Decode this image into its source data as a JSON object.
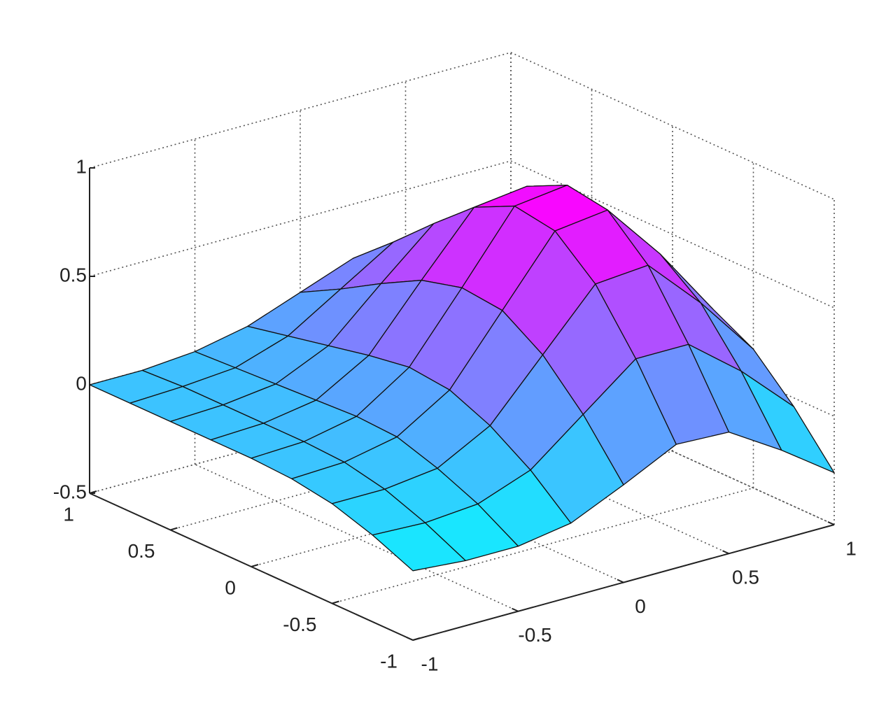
{
  "chart_data": {
    "type": "surface",
    "x": [
      -1,
      -0.75,
      -0.5,
      -0.25,
      0,
      0.25,
      0.5,
      0.75,
      1
    ],
    "y": [
      -1,
      -0.75,
      -0.5,
      -0.25,
      0,
      0.25,
      0.5,
      0.75,
      1
    ],
    "z": [
      [
        -0.18,
        -0.2,
        -0.2,
        -0.16,
        -0.05,
        0.07,
        0.06,
        -0.09,
        -0.26
      ],
      [
        -0.1,
        -0.11,
        -0.09,
        0.0,
        0.19,
        0.38,
        0.38,
        0.19,
        -0.04
      ],
      [
        -0.04,
        -0.04,
        -0.01,
        0.12,
        0.38,
        0.64,
        0.66,
        0.42,
        0.14
      ],
      [
        -0.01,
        0.0,
        0.05,
        0.2,
        0.5,
        0.8,
        0.83,
        0.56,
        0.24
      ],
      [
        0.0,
        0.01,
        0.06,
        0.22,
        0.52,
        0.83,
        0.86,
        0.59,
        0.27
      ],
      [
        0.0,
        0.01,
        0.05,
        0.19,
        0.47,
        0.74,
        0.77,
        0.53,
        0.24
      ],
      [
        0.0,
        0.01,
        0.04,
        0.15,
        0.37,
        0.58,
        0.61,
        0.42,
        0.19
      ],
      [
        0.0,
        0.01,
        0.03,
        0.11,
        0.26,
        0.41,
        0.42,
        0.29,
        0.13
      ],
      [
        0.0,
        0.0,
        0.02,
        0.07,
        0.16,
        0.25,
        0.26,
        0.18,
        0.08
      ]
    ],
    "colormap": [
      "#00ffff",
      "#ff00ff"
    ],
    "xlim": [
      -1,
      1
    ],
    "xticks": [
      -1,
      -0.5,
      0,
      0.5,
      1
    ],
    "ylim": [
      -1,
      1
    ],
    "yticks": [
      -1,
      -0.5,
      0,
      0.5,
      1
    ],
    "zlim": [
      -0.5,
      1
    ],
    "zticks": [
      -0.5,
      0,
      0.5,
      1
    ],
    "grid": true
  }
}
